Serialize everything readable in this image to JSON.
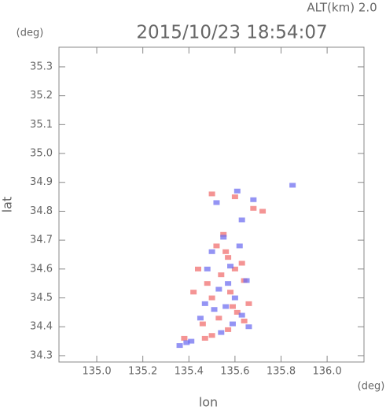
{
  "chart_data": {
    "type": "scatter",
    "title": "2015/10/23 18:54:07",
    "altitude_label": "ALT(km)  2.0",
    "y_unit": "(deg)",
    "x_unit": "(deg)",
    "xlabel": "lon",
    "ylabel": "lat",
    "xlim": [
      134.836,
      136.16
    ],
    "ylim": [
      34.278,
      35.368
    ],
    "xticks": [
      {
        "value": 135,
        "label": "135.0"
      },
      135.2,
      135.4,
      135.6,
      135.8,
      {
        "value": 136,
        "label": "136.0"
      }
    ],
    "yticks": [
      34.3,
      34.4,
      34.5,
      34.6,
      34.7,
      34.8,
      34.9,
      {
        "value": 35,
        "label": "35.0"
      },
      35.1,
      35.2,
      35.3
    ],
    "series": [
      {
        "color": "#f07070",
        "x": [
          135.52,
          135.57,
          135.6,
          135.54,
          135.63,
          135.48,
          135.5,
          135.58,
          135.66,
          135.61,
          135.53,
          135.46,
          135.57,
          135.64,
          135.5,
          135.59,
          135.44,
          135.42,
          135.47,
          135.55,
          135.68,
          135.72,
          135.5,
          135.6,
          135.38,
          135.56,
          135.64
        ],
        "y": [
          34.68,
          34.64,
          34.6,
          34.58,
          34.62,
          34.55,
          34.5,
          34.52,
          34.48,
          34.45,
          34.43,
          34.41,
          34.39,
          34.42,
          34.37,
          34.47,
          34.6,
          34.52,
          34.36,
          34.72,
          34.81,
          34.8,
          34.86,
          34.85,
          34.36,
          34.66,
          34.56
        ]
      },
      {
        "color": "#7070f0",
        "x": [
          135.55,
          135.5,
          135.62,
          135.58,
          135.48,
          135.65,
          135.53,
          135.6,
          135.56,
          135.63,
          135.51,
          135.47,
          135.59,
          135.66,
          135.54,
          135.41,
          135.39,
          135.36,
          135.45,
          135.63,
          135.68,
          135.52,
          135.85,
          135.61,
          135.57
        ],
        "y": [
          34.71,
          34.66,
          34.68,
          34.61,
          34.6,
          34.56,
          34.53,
          34.5,
          34.47,
          34.44,
          34.46,
          34.48,
          34.41,
          34.4,
          34.38,
          34.35,
          34.345,
          34.335,
          34.43,
          34.77,
          34.84,
          34.83,
          34.89,
          34.87,
          34.55
        ]
      }
    ]
  }
}
